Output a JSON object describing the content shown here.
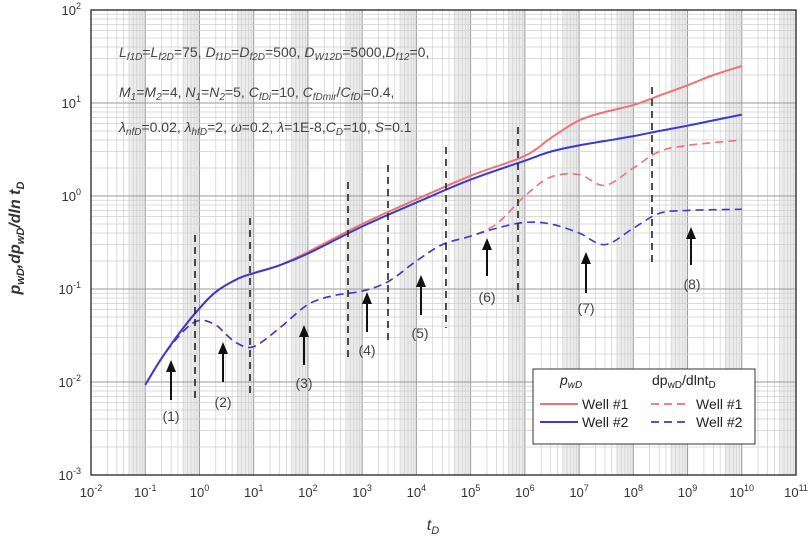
{
  "chart_data": {
    "type": "line",
    "xlabel": "t",
    "xlabel_sub": "D",
    "ylabel": "p",
    "ylabel_sub1": "wD",
    "ylabel_mid": ",dp",
    "ylabel_sub2": "wD",
    "ylabel_tail": "/dln t",
    "ylabel_sub3": "D",
    "x_scale": "log",
    "y_scale": "log",
    "xlim": [
      0.01,
      100000000000
    ],
    "ylim": [
      0.001,
      100
    ],
    "x_ticks": [
      {
        "base": "10",
        "exp": "-2"
      },
      {
        "base": "10",
        "exp": "-1"
      },
      {
        "base": "10",
        "exp": "0"
      },
      {
        "base": "10",
        "exp": "1"
      },
      {
        "base": "10",
        "exp": "2"
      },
      {
        "base": "10",
        "exp": "3"
      },
      {
        "base": "10",
        "exp": "4"
      },
      {
        "base": "10",
        "exp": "5"
      },
      {
        "base": "10",
        "exp": "6"
      },
      {
        "base": "10",
        "exp": "7"
      },
      {
        "base": "10",
        "exp": "8"
      },
      {
        "base": "10",
        "exp": "9"
      },
      {
        "base": "10",
        "exp": "10"
      },
      {
        "base": "10",
        "exp": "11"
      }
    ],
    "y_ticks": [
      {
        "base": "10",
        "exp": "-3"
      },
      {
        "base": "10",
        "exp": "-2"
      },
      {
        "base": "10",
        "exp": "-1"
      },
      {
        "base": "10",
        "exp": "0"
      },
      {
        "base": "10",
        "exp": "1"
      },
      {
        "base": "10",
        "exp": "2"
      }
    ],
    "grid": true,
    "params": [
      "L_f1D=L_f2D=75, D_f1D=D_f2D=500, D_W12D=5000,D_f12=0,",
      "M_1=M_2=4, N_1=N_2=5, C_fDi=10, C_fDmir/C_fDi=0.4,",
      "λ_nfD=0.02, λ_hfD=2, ω=0.2, λ=1E-8,C_D=10, S=0.1"
    ],
    "legend": {
      "placement": "bottom-right",
      "col1_header": "p",
      "col1_header_sub": "wD",
      "col2_header": "dp",
      "col2_header_sub1": "wD",
      "col2_header_mid": "/dlnt",
      "col2_header_sub2": "D",
      "entries": [
        "Well #1",
        "Well #2",
        "Well #1",
        "Well #2"
      ]
    },
    "colors": {
      "well1": "#f07272",
      "well2": "#3a3ad0"
    },
    "series": [
      {
        "legend_label": "Well #1",
        "kind": "pressure",
        "style": "solid",
        "x": [
          0.1,
          0.2,
          0.5,
          1,
          2,
          5,
          10,
          30,
          100,
          1000,
          10000,
          100000,
          1000000,
          3000000,
          10000000,
          30000000,
          100000000,
          300000000,
          1000000000,
          3000000000,
          10000000000
        ],
        "y": [
          0.0093,
          0.018,
          0.038,
          0.062,
          0.093,
          0.128,
          0.148,
          0.18,
          0.25,
          0.5,
          0.92,
          1.65,
          2.7,
          4.2,
          6.5,
          8.0,
          9.5,
          12.0,
          15.5,
          20.0,
          25.0
        ]
      },
      {
        "legend_label": "Well #2",
        "kind": "pressure",
        "style": "solid",
        "x": [
          0.1,
          0.2,
          0.5,
          1,
          2,
          5,
          10,
          30,
          100,
          1000,
          10000,
          100000,
          1000000,
          3000000,
          10000000,
          30000000,
          100000000,
          300000000,
          1000000000,
          3000000000,
          10000000000
        ],
        "y": [
          0.0093,
          0.018,
          0.038,
          0.062,
          0.093,
          0.128,
          0.148,
          0.18,
          0.24,
          0.47,
          0.85,
          1.5,
          2.4,
          3.0,
          3.5,
          3.9,
          4.4,
          5.0,
          5.7,
          6.5,
          7.5
        ]
      },
      {
        "legend_label": "Well #1",
        "kind": "derivative",
        "style": "dashed",
        "x": [
          0.1,
          0.2,
          0.5,
          1,
          2,
          3,
          5,
          10,
          30,
          100,
          300,
          1000,
          3000,
          10000,
          30000,
          100000,
          300000,
          1000000,
          3000000,
          10000000,
          30000000,
          100000000,
          300000000,
          1000000000,
          10000000000
        ],
        "y": [
          0.0093,
          0.018,
          0.035,
          0.046,
          0.041,
          0.033,
          0.026,
          0.024,
          0.038,
          0.068,
          0.085,
          0.095,
          0.12,
          0.2,
          0.3,
          0.37,
          0.5,
          1.0,
          1.6,
          1.7,
          1.3,
          2.0,
          3.0,
          3.5,
          4.0
        ]
      },
      {
        "legend_label": "Well #2",
        "kind": "derivative",
        "style": "dashed",
        "x": [
          0.1,
          0.2,
          0.5,
          1,
          2,
          3,
          5,
          10,
          30,
          100,
          300,
          1000,
          3000,
          10000,
          30000,
          100000,
          300000,
          1000000,
          3000000,
          10000000,
          30000000,
          100000000,
          300000000,
          1000000000,
          10000000000
        ],
        "y": [
          0.0093,
          0.018,
          0.035,
          0.046,
          0.041,
          0.033,
          0.026,
          0.024,
          0.038,
          0.068,
          0.085,
          0.095,
          0.12,
          0.2,
          0.3,
          0.37,
          0.45,
          0.52,
          0.5,
          0.4,
          0.3,
          0.45,
          0.65,
          0.7,
          0.72
        ]
      }
    ],
    "region_labels": [
      "(1)",
      "(2)",
      "(3)",
      "(4)",
      "(5)",
      "(6)",
      "(7)",
      "(8)"
    ]
  }
}
